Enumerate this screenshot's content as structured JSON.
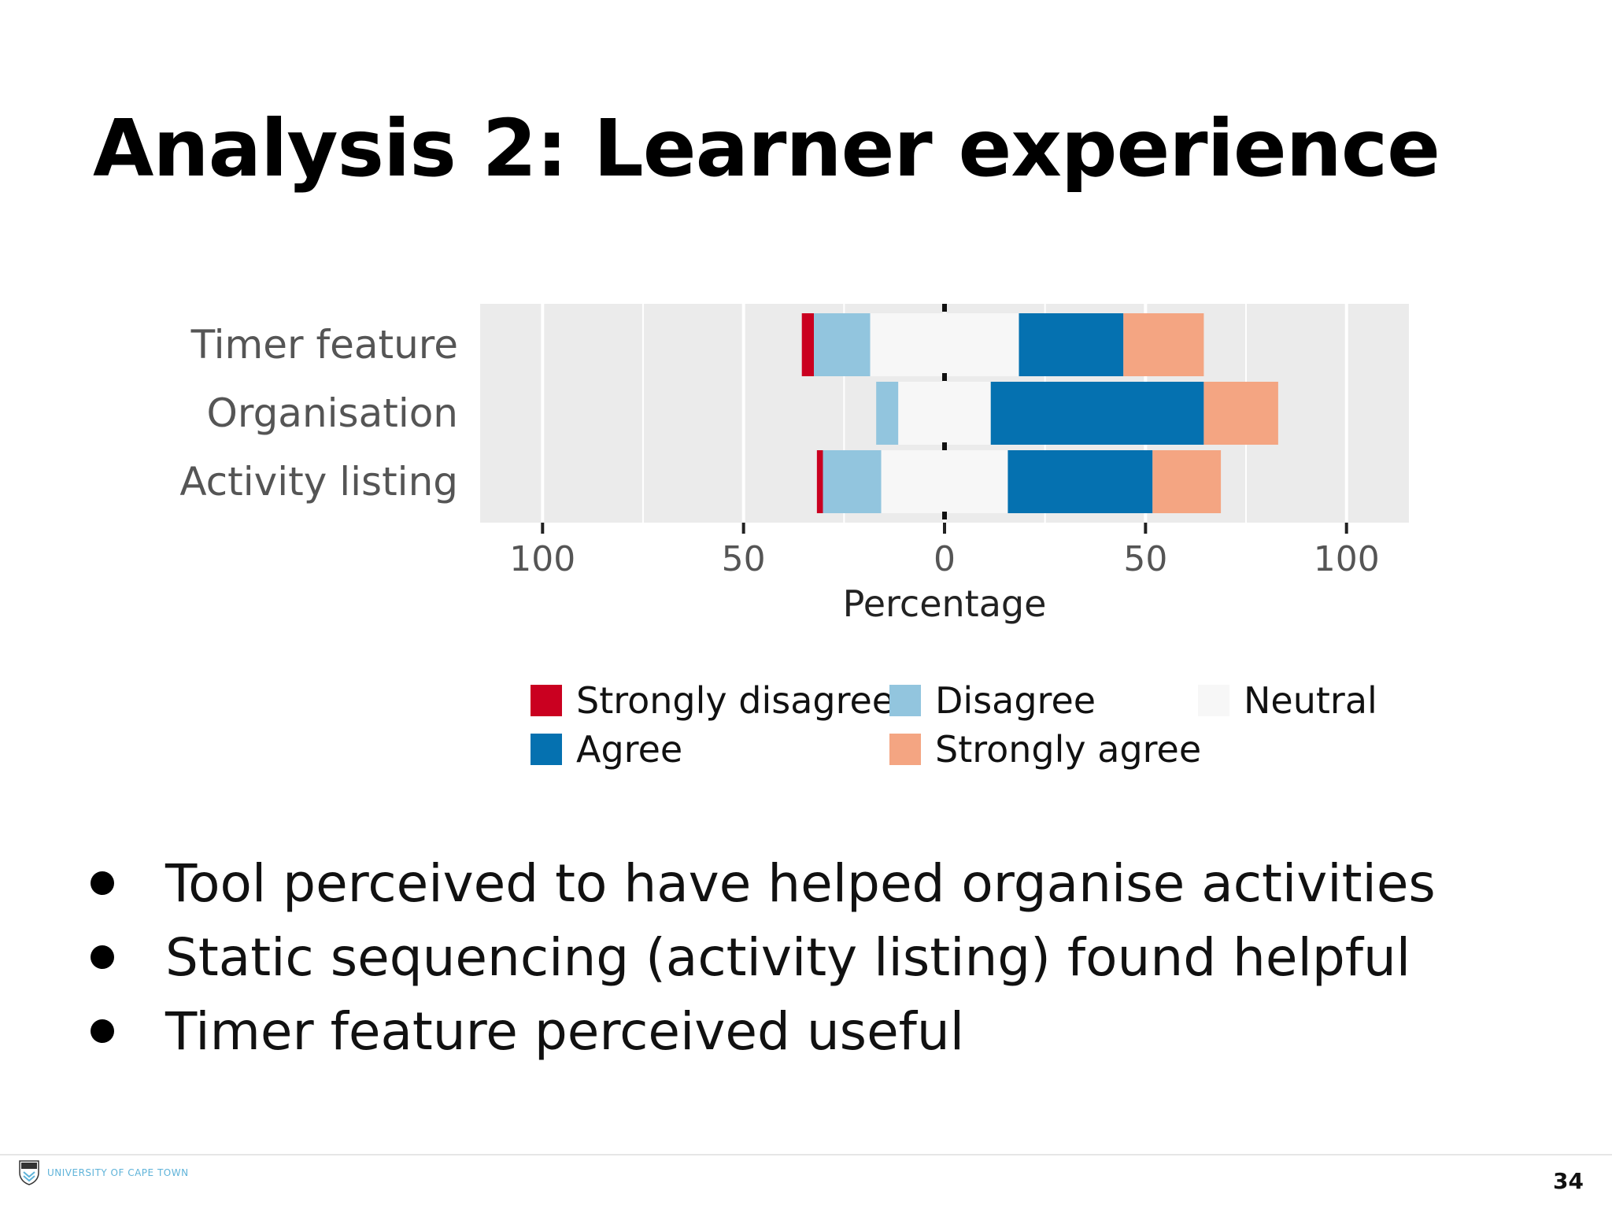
{
  "slide": {
    "title": "Analysis 2: Learner experience",
    "bullets": [
      "Tool perceived to have helped organise activities",
      "Static sequencing (activity listing) found helpful",
      "Timer feature perceived useful"
    ],
    "page_number": "34"
  },
  "footer": {
    "logo_text": "UNIVERSITY OF CAPE TOWN",
    "logo_icon": "university-crest-icon"
  },
  "colors": {
    "strongly_disagree": "#ca0020",
    "disagree": "#92c5de",
    "neutral": "#f7f7f7",
    "agree": "#0571b0",
    "strongly_agree": "#f4a582",
    "panel_bg": "#ebebeb",
    "gridline": "#ffffff"
  },
  "chart_data": {
    "type": "bar",
    "subtype": "diverging-stacked-likert",
    "orientation": "horizontal",
    "title": "",
    "xlabel": "Percentage",
    "ylabel": "",
    "xlim": [
      -115,
      115
    ],
    "xticks": [
      -100,
      -50,
      0,
      50,
      100
    ],
    "xtick_labels": [
      "100",
      "50",
      "0",
      "50",
      "100"
    ],
    "grid": true,
    "legend_position": "bottom",
    "categories": [
      "Timer feature",
      "Organisation",
      "Activity listing"
    ],
    "series": [
      {
        "name": "Strongly disagree",
        "values": [
          3,
          0,
          1.5
        ]
      },
      {
        "name": "Disagree",
        "values": [
          14,
          5.5,
          14.5
        ]
      },
      {
        "name": "Neutral",
        "values": [
          37,
          23,
          31.5
        ]
      },
      {
        "name": "Agree",
        "values": [
          26,
          53,
          36
        ]
      },
      {
        "name": "Strongly agree",
        "values": [
          20,
          18.5,
          17
        ]
      }
    ]
  }
}
